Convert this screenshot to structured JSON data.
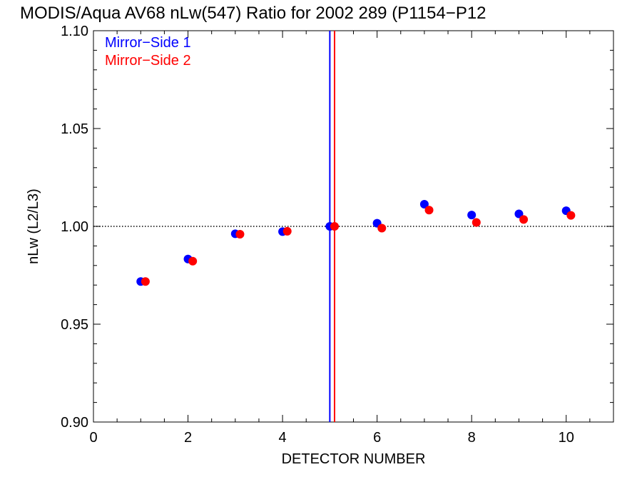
{
  "chart_data": {
    "type": "scatter",
    "title": "MODIS/Aqua AV68 nLw(547) Ratio for 2002 289 (P1154−P12",
    "xlabel": "DETECTOR NUMBER",
    "ylabel": "nLw (L2/L3)",
    "xlim": [
      0,
      11
    ],
    "ylim": [
      0.9,
      1.1
    ],
    "x_ticks": [
      0,
      2,
      4,
      6,
      8,
      10
    ],
    "x_tick_labels": [
      "0",
      "2",
      "4",
      "6",
      "8",
      "10"
    ],
    "y_ticks": [
      0.9,
      0.95,
      1.0,
      1.05,
      1.1
    ],
    "y_tick_labels": [
      "0.90",
      "0.95",
      "1.00",
      "1.05",
      "1.10"
    ],
    "reference_line_y": 1.0,
    "vertical_lines": [
      {
        "x": 5.0,
        "color": "#0000ff"
      },
      {
        "x": 5.1,
        "color": "#ff0000"
      }
    ],
    "legend_position": "top-left",
    "series": [
      {
        "name": "Mirror−Side 1",
        "color": "#0000ff",
        "x": [
          1,
          2,
          3,
          4,
          5,
          6,
          7,
          8,
          9,
          10
        ],
        "y": [
          0.9718,
          0.9833,
          0.9962,
          0.9973,
          1.0,
          1.0016,
          1.0113,
          1.0058,
          1.0064,
          1.008
        ]
      },
      {
        "name": "Mirror−Side 2",
        "color": "#ff0000",
        "x": [
          1.1,
          2.1,
          3.1,
          4.1,
          5.1,
          6.1,
          7.1,
          8.1,
          9.1,
          10.1
        ],
        "y": [
          0.9718,
          0.9822,
          0.996,
          0.9975,
          1.0,
          0.9991,
          1.0083,
          1.002,
          1.0035,
          1.0056
        ]
      }
    ]
  }
}
